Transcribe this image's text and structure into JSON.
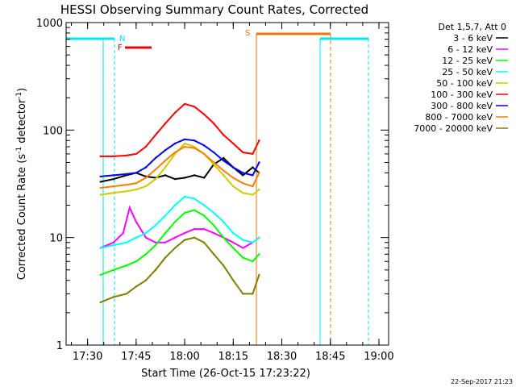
{
  "chart_data": {
    "type": "line",
    "title": "HESSI Observing Summary Count Rates, Corrected",
    "xlabel": "Start Time (26-Oct-15 17:23:22)",
    "ylabel": "Corrected Count Rate (s",
    "ylabel_sup1": "-1",
    "ylabel_mid": " detector",
    "ylabel_sup2": "-1",
    "ylabel_end": ")",
    "yscale": "log",
    "ylim": [
      1,
      1000
    ],
    "xlim": [
      "17:23:22",
      "19:03:00"
    ],
    "x_ticks": [
      "17:30",
      "17:45",
      "18:00",
      "18:15",
      "18:30",
      "18:45",
      "19:00"
    ],
    "y_ticks": [
      "1",
      "10",
      "100",
      "1000"
    ],
    "legend_title": "Det 1,5,7, Att 0",
    "legend_position": "right",
    "series": [
      {
        "name": "3 - 6 keV",
        "color": "#000000",
        "x": [
          "17:34",
          "17:38",
          "17:42",
          "17:45",
          "17:48",
          "17:51",
          "17:54",
          "17:57",
          "18:00",
          "18:03",
          "18:06",
          "18:09",
          "18:12",
          "18:15",
          "18:18",
          "18:21",
          "18:23"
        ],
        "values": [
          33,
          35,
          38,
          40,
          37,
          36,
          38,
          35,
          36,
          38,
          36,
          48,
          55,
          45,
          38,
          45,
          40
        ]
      },
      {
        "name": "6 - 12 keV",
        "color": "#ff00ff",
        "x": [
          "17:34",
          "17:38",
          "17:41",
          "17:43",
          "17:45",
          "17:48",
          "17:51",
          "17:54",
          "17:57",
          "18:00",
          "18:03",
          "18:06",
          "18:09",
          "18:12",
          "18:15",
          "18:18",
          "18:21",
          "18:23"
        ],
        "values": [
          8,
          9,
          11,
          19,
          14,
          10,
          9,
          9,
          10,
          11,
          12,
          12,
          11,
          10,
          9,
          8,
          9,
          10
        ]
      },
      {
        "name": "12 - 25 keV",
        "color": "#00ff00",
        "x": [
          "17:34",
          "17:38",
          "17:42",
          "17:45",
          "17:48",
          "17:51",
          "17:54",
          "17:57",
          "18:00",
          "18:03",
          "18:06",
          "18:09",
          "18:12",
          "18:15",
          "18:18",
          "18:21",
          "18:23"
        ],
        "values": [
          4.5,
          5,
          5.5,
          6,
          7,
          8.5,
          11,
          14,
          17,
          18,
          16,
          13,
          10,
          8,
          6.5,
          6,
          7
        ]
      },
      {
        "name": "25 - 50 keV",
        "color": "#00ffff",
        "x": [
          "17:34",
          "17:38",
          "17:42",
          "17:45",
          "17:48",
          "17:51",
          "17:54",
          "17:57",
          "18:00",
          "18:03",
          "18:06",
          "18:09",
          "18:12",
          "18:15",
          "18:18",
          "18:21",
          "18:23"
        ],
        "values": [
          8,
          8.5,
          9,
          10,
          11,
          13,
          16,
          20,
          24,
          23,
          20,
          17,
          14,
          11,
          9.5,
          9,
          10
        ]
      },
      {
        "name": "50 - 100 keV",
        "color": "#cccc00",
        "x": [
          "17:34",
          "17:38",
          "17:42",
          "17:45",
          "17:48",
          "17:51",
          "17:54",
          "17:57",
          "18:00",
          "18:03",
          "18:06",
          "18:09",
          "18:12",
          "18:15",
          "18:18",
          "18:21",
          "18:23"
        ],
        "values": [
          25,
          26,
          27,
          28,
          30,
          35,
          45,
          60,
          75,
          70,
          60,
          48,
          38,
          30,
          26,
          25,
          28
        ]
      },
      {
        "name": "100 - 300 keV",
        "color": "#ff0000",
        "x": [
          "17:34",
          "17:38",
          "17:42",
          "17:45",
          "17:48",
          "17:51",
          "17:54",
          "17:57",
          "18:00",
          "18:03",
          "18:06",
          "18:09",
          "18:12",
          "18:15",
          "18:18",
          "18:21",
          "18:23"
        ],
        "values": [
          57,
          57,
          58,
          60,
          70,
          90,
          115,
          145,
          175,
          165,
          140,
          115,
          90,
          75,
          62,
          60,
          80
        ]
      },
      {
        "name": "300 - 800 keV",
        "color": "#0000ff",
        "x": [
          "17:34",
          "17:38",
          "17:42",
          "17:45",
          "17:48",
          "17:51",
          "17:54",
          "17:57",
          "18:00",
          "18:03",
          "18:06",
          "18:09",
          "18:12",
          "18:15",
          "18:18",
          "18:21",
          "18:23"
        ],
        "values": [
          37,
          38,
          39,
          40,
          45,
          55,
          65,
          75,
          82,
          80,
          72,
          62,
          52,
          45,
          40,
          38,
          50
        ]
      },
      {
        "name": "800 - 7000 keV",
        "color": "#ff7f00",
        "x": [
          "17:34",
          "17:38",
          "17:42",
          "17:45",
          "17:48",
          "17:51",
          "17:54",
          "17:57",
          "18:00",
          "18:03",
          "18:06",
          "18:09",
          "18:12",
          "18:15",
          "18:18",
          "18:21",
          "18:23"
        ],
        "values": [
          29,
          30,
          31,
          32,
          36,
          43,
          52,
          62,
          70,
          68,
          60,
          50,
          42,
          36,
          32,
          30,
          40
        ]
      },
      {
        "name": "7000 - 20000 keV",
        "color": "#808000",
        "x": [
          "17:34",
          "17:38",
          "17:42",
          "17:45",
          "17:48",
          "17:51",
          "17:54",
          "17:57",
          "18:00",
          "18:03",
          "18:06",
          "18:09",
          "18:12",
          "18:15",
          "18:18",
          "18:21",
          "18:23"
        ],
        "values": [
          2.5,
          2.8,
          3,
          3.5,
          4,
          5,
          6.5,
          8,
          9.5,
          10,
          9,
          7,
          5.5,
          4,
          3,
          3,
          4.5
        ]
      }
    ],
    "markers": {
      "N_label": "N",
      "F_label": "F",
      "S_label": "S"
    }
  },
  "timestamp": "22-Sep-2017 21:23"
}
